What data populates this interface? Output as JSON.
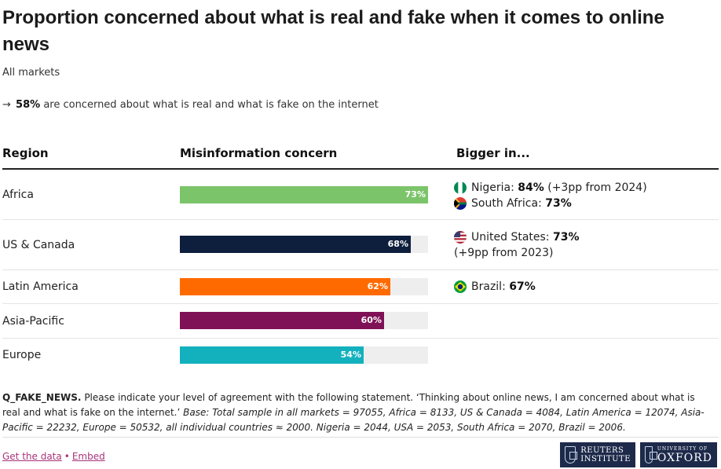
{
  "title": "Proportion concerned about what is real and fake when it comes to online news",
  "subtitle": "All markets",
  "headline": {
    "arrow": "→",
    "value": "58%",
    "text": "are concerned about what is real and what is fake on the internet"
  },
  "columns": {
    "region": "Region",
    "concern": "Misinformation concern",
    "bigger": "Bigger in..."
  },
  "colors": {
    "africa": "#7cc46a",
    "us_canada": "#0d1f3c",
    "latin_america": "#ff6a00",
    "asia_pacific": "#7f1257",
    "europe": "#13b1bd",
    "track": "#eeeeee"
  },
  "chart_data": {
    "type": "bar",
    "orientation": "horizontal",
    "categories": [
      "Africa",
      "US & Canada",
      "Latin America",
      "Asia-Pacific",
      "Europe"
    ],
    "values": [
      73,
      68,
      62,
      60,
      54
    ],
    "value_labels": [
      "73%",
      "68%",
      "62%",
      "60%",
      "54%"
    ],
    "xlim": [
      0,
      73
    ],
    "unit": "%"
  },
  "bigger_in": [
    {
      "lines": [
        {
          "flag": "nigeria-flag",
          "country": "Nigeria:",
          "value": "84%",
          "extra": "(+3pp from 2024)"
        },
        {
          "flag": "south-africa-flag",
          "country": "South Africa:",
          "value": "73%",
          "extra": ""
        }
      ]
    },
    {
      "lines": [
        {
          "flag": "united-states-flag",
          "country": "United States:",
          "value": "73%",
          "extra": ""
        },
        {
          "flag": "",
          "country": "",
          "value": "",
          "extra": "(+9pp from 2023)"
        }
      ]
    },
    {
      "lines": [
        {
          "flag": "brazil-flag",
          "country": "Brazil:",
          "value": "67%",
          "extra": ""
        }
      ]
    }
  ],
  "note": {
    "code": "Q_FAKE_NEWS.",
    "question": "Please indicate your level of agreement with the following statement. ‘Thinking about online news, I am concerned about what is real and what is fake on the internet.’",
    "base": "Base: Total sample in all markets = 97055, Africa = 8133, US & Canada = 4084, Latin America = 12074, Asia-Pacific = 22232, Europe = 50532, all individual countries ≈ 2000. Nigeria = 2044, USA = 2053, South Africa = 2070, Brazil = 2006."
  },
  "footer": {
    "get_data": "Get the data",
    "separator": "•",
    "embed": "Embed"
  },
  "logos": {
    "reuters_line1": "REUTERS",
    "reuters_line2": "INSTITUTE",
    "oxford_small": "UNIVERSITY OF",
    "oxford_big": "OXFORD"
  }
}
